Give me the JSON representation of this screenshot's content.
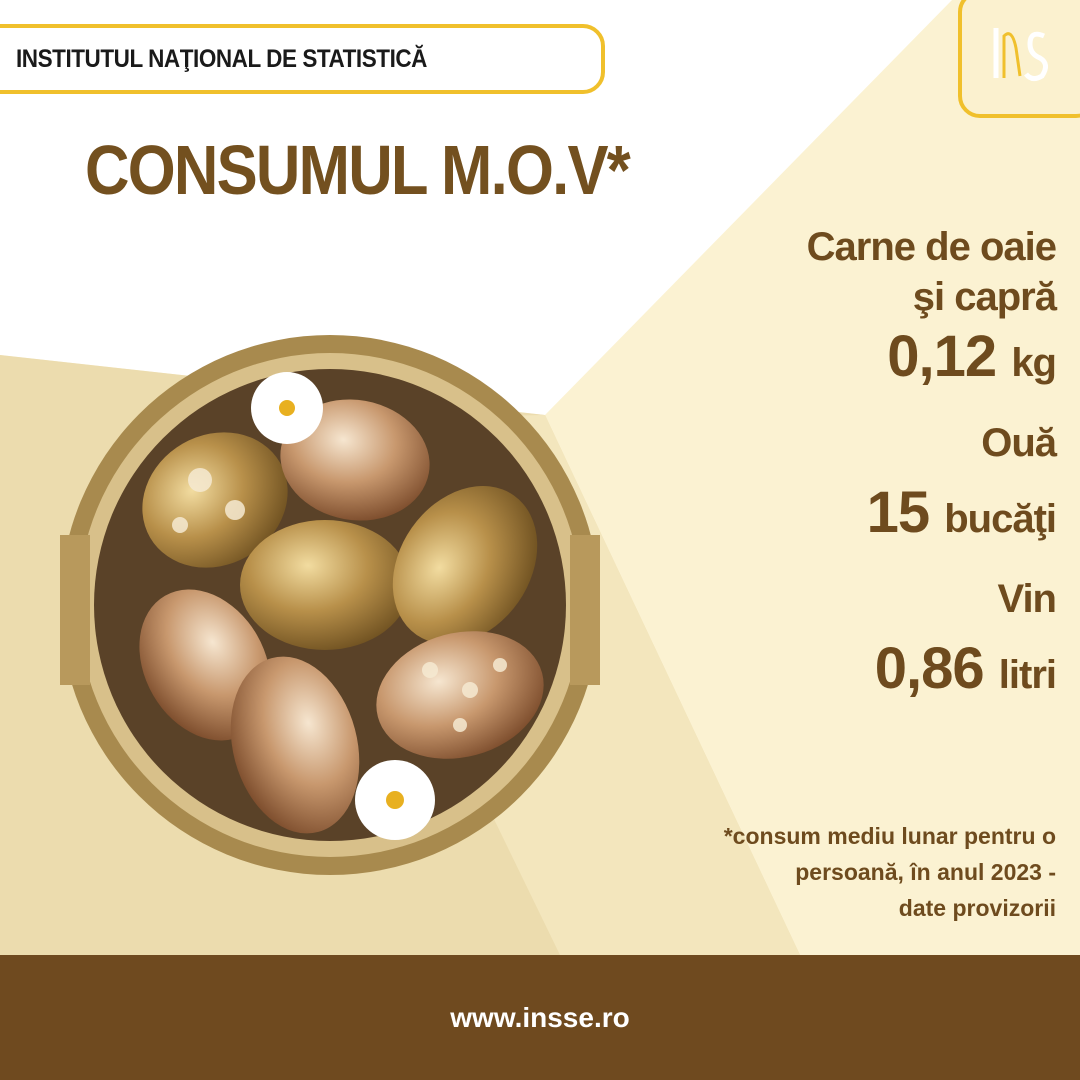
{
  "header": {
    "institution": "INSTITUTUL NAŢIONAL DE STATISTICĂ",
    "logo_text": "INS"
  },
  "title": "CONSUMUL M.O.V*",
  "stats": [
    {
      "label_line1": "Carne de oaie",
      "label_line2": "şi capră",
      "value": "0,12",
      "unit": "kg"
    },
    {
      "label_line1": "Ouă",
      "value": "15",
      "unit": "bucăţi"
    },
    {
      "label_line1": "Vin",
      "value": "0,86",
      "unit": "litri"
    }
  ],
  "note": [
    "*consum mediu lunar pentru o",
    "persoană, în anul 2023 -",
    "date provizorii"
  ],
  "footer": {
    "url": "www.insse.ro"
  },
  "colors": {
    "brown": "#6f4a1f",
    "gold": "#f0c02c",
    "cream": "#fbf2d2",
    "beige": "#ecdcae"
  }
}
